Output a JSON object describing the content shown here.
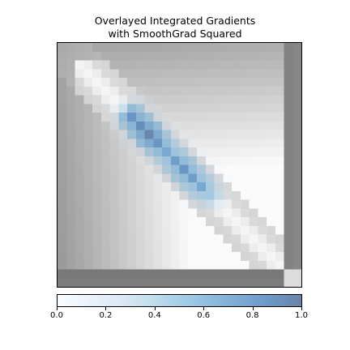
{
  "chart_data": {
    "type": "heatmap",
    "title_lines": [
      "Overlayed Integrated Gradients",
      "with SmoothGrad Squared"
    ],
    "grid_size": 28,
    "colormap": "Blues",
    "overlay_alpha": 0.6,
    "colorbar": {
      "orientation": "horizontal",
      "range": [
        0.0,
        1.0
      ],
      "ticks": [
        0.0,
        0.2,
        0.4,
        0.6,
        0.8,
        1.0
      ],
      "tick_labels": [
        "0.0",
        "0.2",
        "0.4",
        "0.6",
        "0.8",
        "1.0"
      ]
    },
    "attribution_hotspots": [
      {
        "row": 8,
        "col": 8,
        "value": 0.85
      },
      {
        "row": 9,
        "col": 9,
        "value": 0.9
      },
      {
        "row": 10,
        "col": 10,
        "value": 0.95
      },
      {
        "row": 11,
        "col": 11,
        "value": 0.85
      },
      {
        "row": 12,
        "col": 12,
        "value": 0.75
      },
      {
        "row": 13,
        "col": 13,
        "value": 0.8
      },
      {
        "row": 14,
        "col": 14,
        "value": 0.85
      },
      {
        "row": 15,
        "col": 15,
        "value": 0.8
      },
      {
        "row": 16,
        "col": 16,
        "value": 0.75
      },
      {
        "row": 17,
        "col": 17,
        "value": 0.6
      }
    ],
    "background_image": "grayscale diagonal gradient with dark border; right column and bottom rows dark, bright diagonal band from top-left to bottom-right",
    "xlabel": "",
    "ylabel": ""
  }
}
